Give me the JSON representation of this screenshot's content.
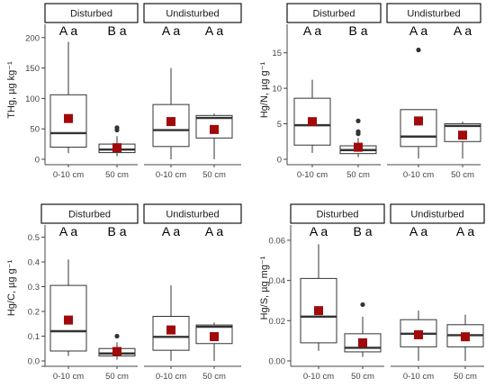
{
  "figure": {
    "background": "#ffffff",
    "box_fill": "#ffffff",
    "box_stroke": "#333333",
    "median_color": "#333333",
    "mean_marker_color": "#a10a0a",
    "outlier_color": "#333333",
    "strip_fill": "#ffffff"
  },
  "chart_data": [
    {
      "type": "boxplot",
      "ylabel": "THg, µg kg⁻¹",
      "ylim": [
        0,
        210
      ],
      "yticks": [
        0,
        50,
        100,
        150,
        200
      ],
      "grid": false,
      "panels": [
        {
          "label": "Disturbed",
          "groups": [
            {
              "category": "0-10 cm",
              "letters": "A a",
              "min": 10,
              "q1": 20,
              "median": 43,
              "q3": 106,
              "max": 193,
              "mean": 67,
              "outliers": []
            },
            {
              "category": "50 cm",
              "letters": "B a",
              "min": 5,
              "q1": 11,
              "median": 16,
              "q3": 25,
              "max": 38,
              "mean": 19,
              "outliers": [
                48,
                52
              ]
            }
          ]
        },
        {
          "label": "Undisturbed",
          "groups": [
            {
              "category": "0-10 cm",
              "letters": "A a",
              "min": 0,
              "q1": 21,
              "median": 48,
              "q3": 90,
              "max": 150,
              "mean": 62,
              "outliers": []
            },
            {
              "category": "50 cm",
              "letters": "A a",
              "min": 0,
              "q1": 35,
              "median": 68,
              "q3": 72,
              "max": 75,
              "mean": 49,
              "outliers": []
            }
          ]
        }
      ]
    },
    {
      "type": "boxplot",
      "ylabel": "Hg/N, µg g⁻¹",
      "ylim": [
        0,
        18
      ],
      "yticks": [
        0,
        5,
        10,
        15
      ],
      "grid": false,
      "panels": [
        {
          "label": "Disturbed",
          "groups": [
            {
              "category": "0-10 cm",
              "letters": "A a",
              "min": 0.9,
              "q1": 2.0,
              "median": 4.8,
              "q3": 8.6,
              "max": 11.2,
              "mean": 5.3,
              "outliers": []
            },
            {
              "category": "50 cm",
              "letters": "B a",
              "min": 0.3,
              "q1": 0.8,
              "median": 1.3,
              "q3": 1.9,
              "max": 3.0,
              "mean": 1.7,
              "outliers": [
                3.6,
                3.9,
                5.4
              ]
            }
          ]
        },
        {
          "label": "Undisturbed",
          "groups": [
            {
              "category": "0-10 cm",
              "letters": "A a",
              "min": 0.1,
              "q1": 1.8,
              "median": 3.2,
              "q3": 7.0,
              "max": 7.0,
              "mean": 5.4,
              "outliers": [
                15.4
              ]
            },
            {
              "category": "50 cm",
              "letters": "A a",
              "min": 0.1,
              "q1": 2.5,
              "median": 4.7,
              "q3": 5.0,
              "max": 5.3,
              "mean": 3.4,
              "outliers": []
            }
          ]
        }
      ]
    },
    {
      "type": "boxplot",
      "ylabel": "Hg/C, µg g⁻¹",
      "ylim": [
        0,
        0.52
      ],
      "yticks": [
        0.0,
        0.1,
        0.2,
        0.3,
        0.4,
        0.5
      ],
      "ytick_labels": [
        "0.0",
        "0.1",
        "0.2",
        "0.3",
        "0.4",
        "0.5"
      ],
      "grid": false,
      "panels": [
        {
          "label": "Disturbed",
          "groups": [
            {
              "category": "0-10 cm",
              "letters": "A a",
              "min": 0.02,
              "q1": 0.04,
              "median": 0.12,
              "q3": 0.305,
              "max": 0.41,
              "mean": 0.165,
              "outliers": []
            },
            {
              "category": "50 cm",
              "letters": "B a",
              "min": 0.005,
              "q1": 0.02,
              "median": 0.03,
              "q3": 0.05,
              "max": 0.075,
              "mean": 0.038,
              "outliers": [
                0.1
              ]
            }
          ]
        },
        {
          "label": "Undisturbed",
          "groups": [
            {
              "category": "0-10 cm",
              "letters": "A a",
              "min": 0.0,
              "q1": 0.043,
              "median": 0.097,
              "q3": 0.18,
              "max": 0.305,
              "mean": 0.125,
              "outliers": []
            },
            {
              "category": "50 cm",
              "letters": "A a",
              "min": 0.0,
              "q1": 0.07,
              "median": 0.138,
              "q3": 0.145,
              "max": 0.155,
              "mean": 0.098,
              "outliers": []
            }
          ]
        }
      ]
    },
    {
      "type": "boxplot",
      "ylabel": "Hg/S, µg mg⁻¹",
      "ylim": [
        0,
        0.064
      ],
      "yticks": [
        0.0,
        0.02,
        0.04,
        0.06
      ],
      "ytick_labels": [
        "0.00",
        "0.02",
        "0.04",
        "0.06"
      ],
      "grid": false,
      "panels": [
        {
          "label": "Disturbed",
          "groups": [
            {
              "category": "0-10 cm",
              "letters": "A a",
              "min": 0.005,
              "q1": 0.009,
              "median": 0.022,
              "q3": 0.041,
              "max": 0.058,
              "mean": 0.025,
              "outliers": []
            },
            {
              "category": "50 cm",
              "letters": "B a",
              "min": 0.002,
              "q1": 0.0045,
              "median": 0.0065,
              "q3": 0.0135,
              "max": 0.022,
              "mean": 0.009,
              "outliers": [
                0.028
              ]
            }
          ]
        },
        {
          "label": "Undisturbed",
          "groups": [
            {
              "category": "0-10 cm",
              "letters": "A a",
              "min": 0.0,
              "q1": 0.007,
              "median": 0.0135,
              "q3": 0.0205,
              "max": 0.025,
              "mean": 0.013,
              "outliers": []
            },
            {
              "category": "50 cm",
              "letters": "A a",
              "min": 0.0,
              "q1": 0.007,
              "median": 0.0128,
              "q3": 0.018,
              "max": 0.023,
              "mean": 0.012,
              "outliers": []
            }
          ]
        }
      ]
    }
  ]
}
